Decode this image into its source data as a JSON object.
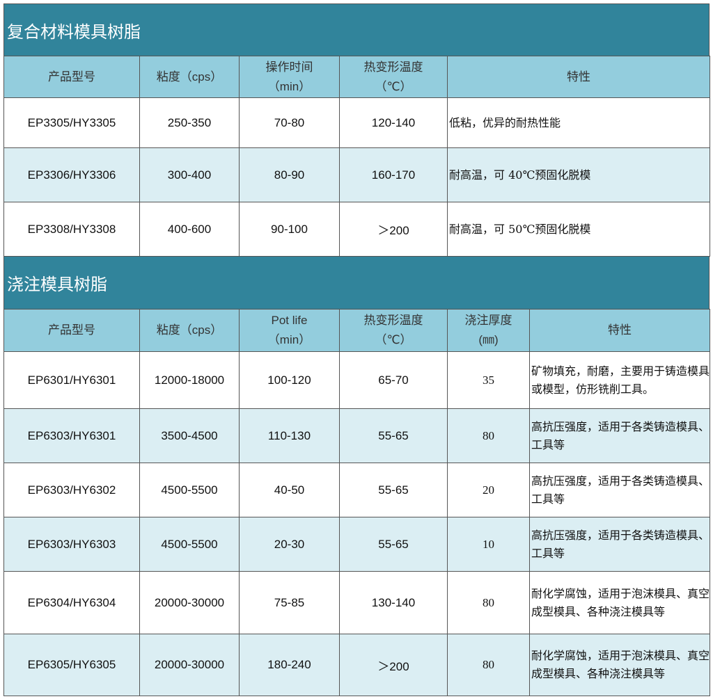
{
  "section1": {
    "title": "复合材料模具树脂",
    "headers": [
      [
        "产品型号"
      ],
      [
        "粘度（cps）"
      ],
      [
        "操作时间",
        "（min）"
      ],
      [
        "热变形温度",
        "（℃）"
      ],
      [
        "特性"
      ]
    ],
    "rows": [
      [
        "EP3305/HY3305",
        "250-350",
        "70-80",
        "120-140",
        "低粘，优异的耐热性能"
      ],
      [
        "EP3306/HY3306",
        "300-400",
        "80-90",
        "160-170",
        "耐高温，可 40℃预固化脱模"
      ],
      [
        "EP3308/HY3308",
        "400-600",
        "90-100",
        "＞200",
        "耐高温，可 50℃预固化脱模"
      ]
    ]
  },
  "section2": {
    "title": "浇注模具树脂",
    "headers": [
      [
        "产品型号"
      ],
      [
        "粘度（cps）"
      ],
      [
        "Pot life",
        "（min）"
      ],
      [
        "热变形温度",
        "（℃）"
      ],
      [
        "浇注厚度",
        "(㎜)"
      ],
      [
        "特性"
      ]
    ],
    "rows": [
      [
        "EP6301/HY6301",
        "12000-18000",
        "100-120",
        "65-70",
        "35",
        "矿物填充，耐磨，主要用于铸造模具或模型，仿形铣削工具。"
      ],
      [
        "EP6303/HY6301",
        "3500-4500",
        "110-130",
        "55-65",
        "80",
        "高抗压强度，适用于各类铸造模具、工具等"
      ],
      [
        "EP6303/HY6302",
        "4500-5500",
        "40-50",
        "55-65",
        "20",
        "高抗压强度，适用于各类铸造模具、工具等"
      ],
      [
        "EP6303/HY6303",
        "4500-5500",
        "20-30",
        "55-65",
        "10",
        "高抗压强度，适用于各类铸造模具、工具等"
      ],
      [
        "EP6304/HY6304",
        "20000-30000",
        "75-85",
        "130-140",
        "80",
        "耐化学腐蚀，适用于泡沫模具、真空成型模具、各种浇注模具等"
      ],
      [
        "EP6305/HY6305",
        "20000-30000",
        "180-240",
        "＞200",
        "80",
        "耐化学腐蚀，适用于泡沫模具、真空成型模具、各种浇注模具等"
      ]
    ]
  },
  "colors": {
    "title_bg": "#31849b",
    "header_bg": "#93cddd",
    "alt_row_bg": "#dbeef3"
  }
}
